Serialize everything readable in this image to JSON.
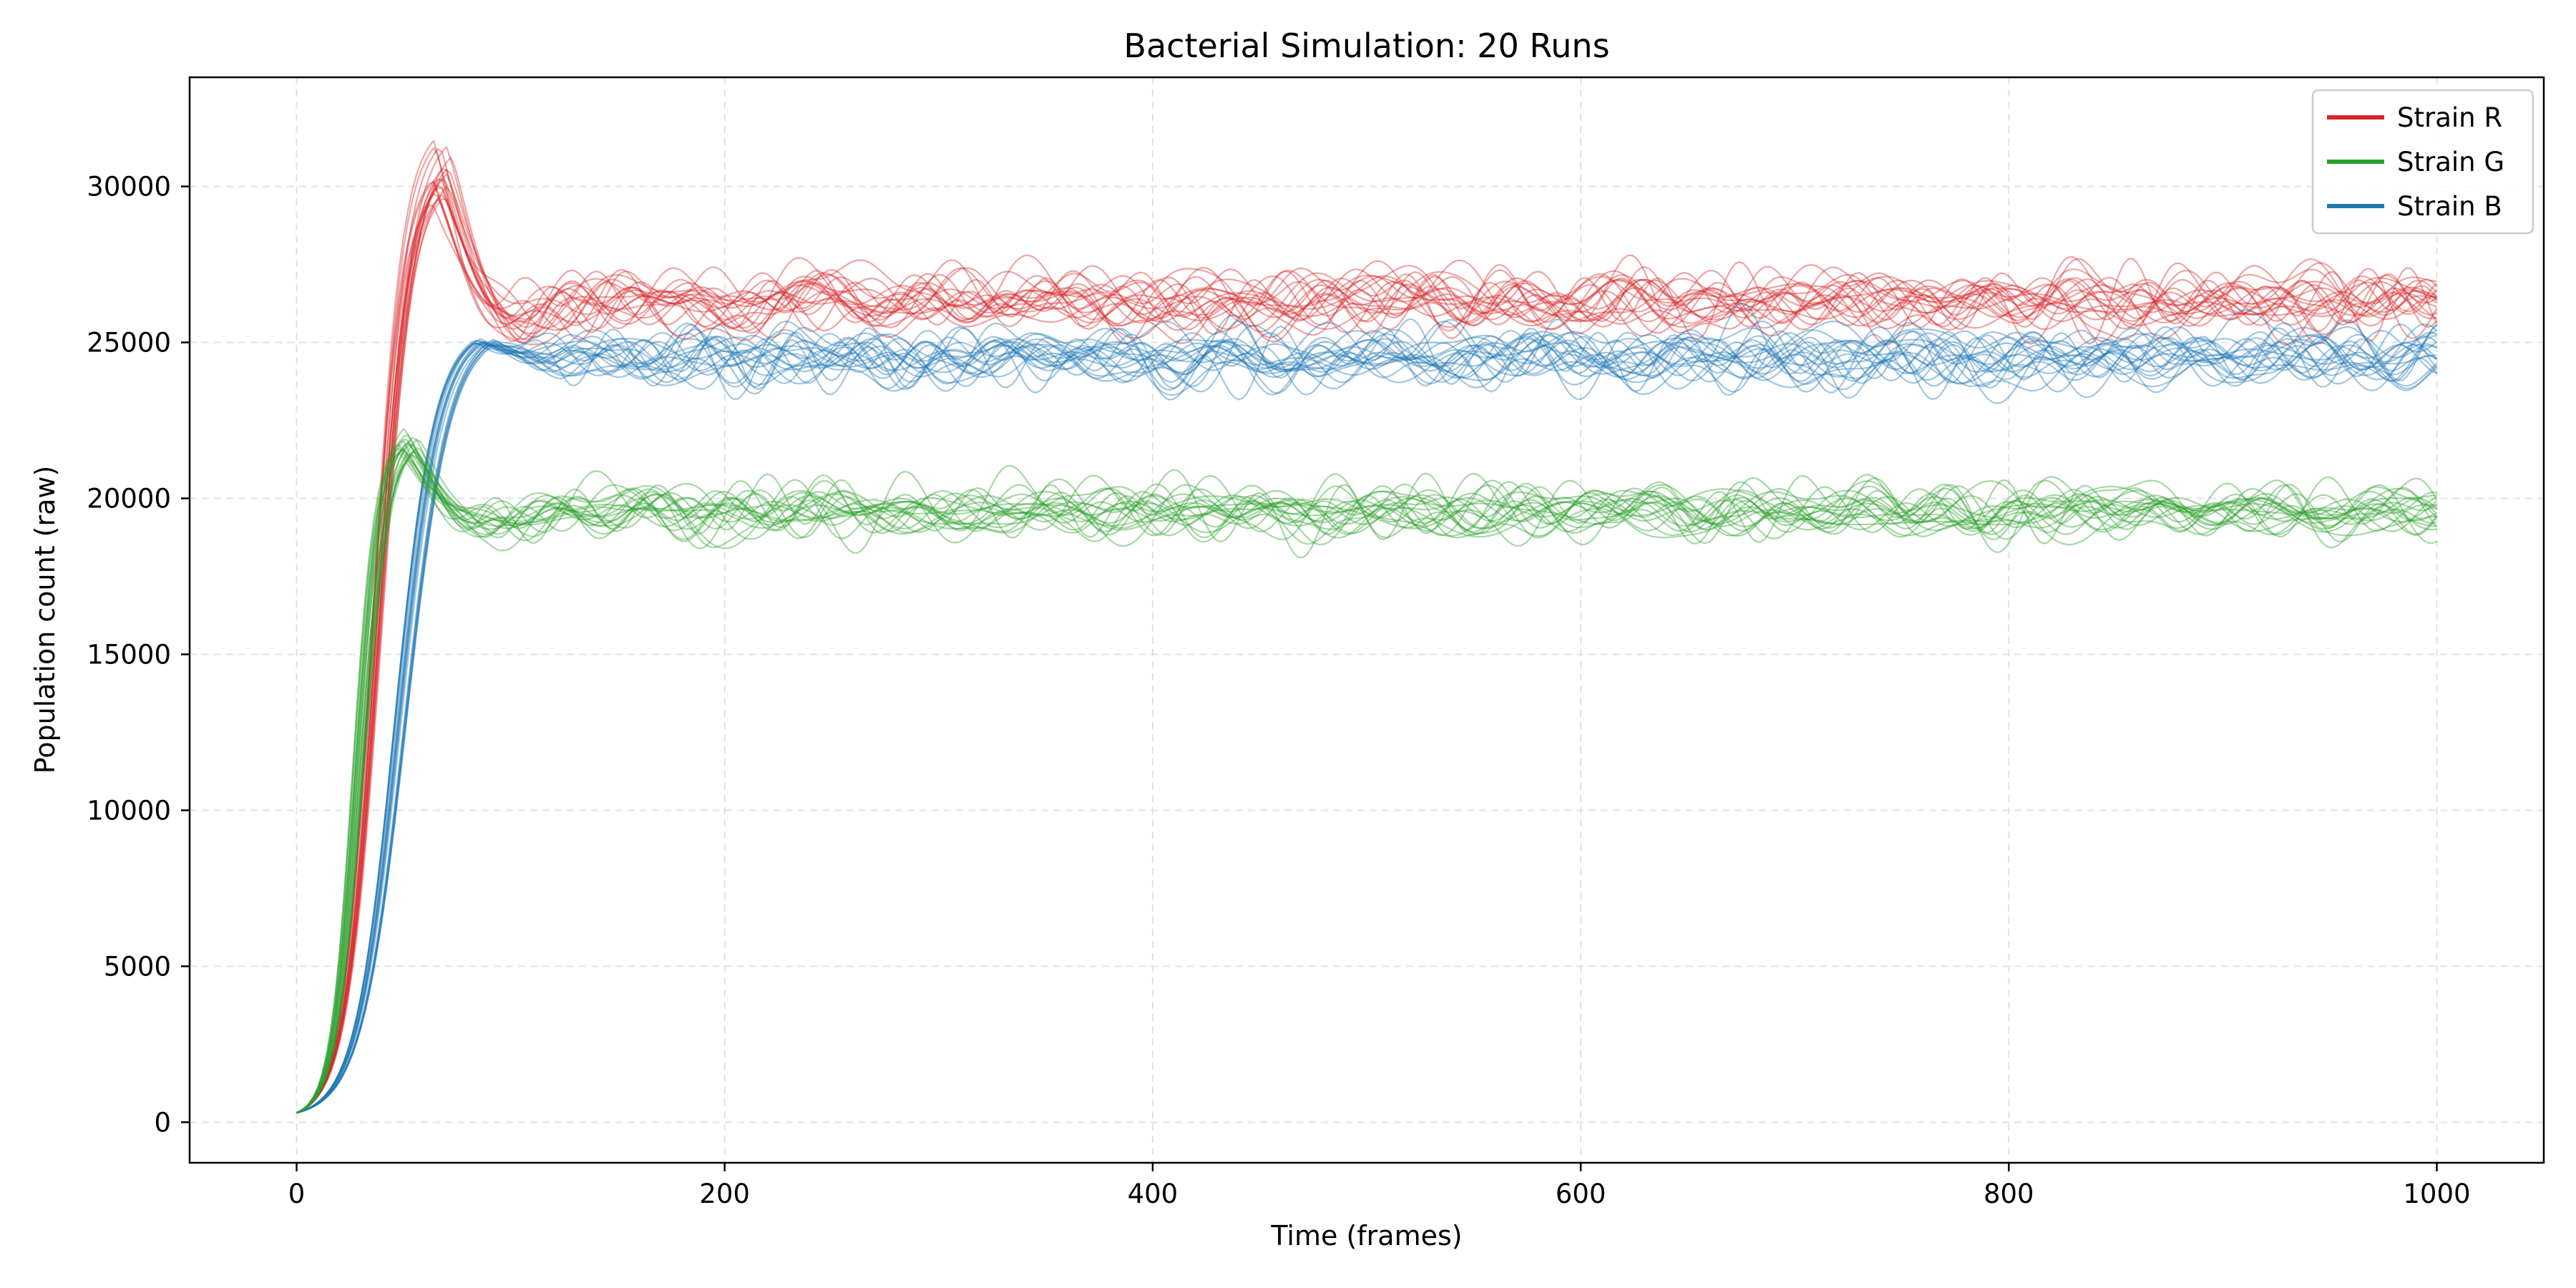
{
  "chart_data": {
    "type": "line",
    "title": "Bacterial Simulation: 20 Runs",
    "xlabel": "Time (frames)",
    "ylabel": "Population count (raw)",
    "xlim": [
      -50,
      1050
    ],
    "ylim": [
      -1300,
      33500
    ],
    "x_ticks": [
      0,
      200,
      400,
      600,
      800,
      1000
    ],
    "y_ticks": [
      0,
      5000,
      10000,
      15000,
      20000,
      25000,
      30000
    ],
    "grid": true,
    "legend_position": "top-right",
    "runs_per_series": 20,
    "x_range": [
      0,
      1000
    ],
    "series": [
      {
        "name": "Strain R",
        "color": "#d62728",
        "start": 300,
        "peak": 30500,
        "peak_x": 68,
        "steady": 26300,
        "fluctuation": 700
      },
      {
        "name": "Strain G",
        "color": "#2ca02c",
        "start": 300,
        "peak": 21800,
        "peak_x": 52,
        "steady": 19600,
        "fluctuation": 600
      },
      {
        "name": "Strain B",
        "color": "#1f77b4",
        "start": 300,
        "peak": 25000,
        "peak_x": 88,
        "steady": 24500,
        "fluctuation": 650
      }
    ]
  }
}
